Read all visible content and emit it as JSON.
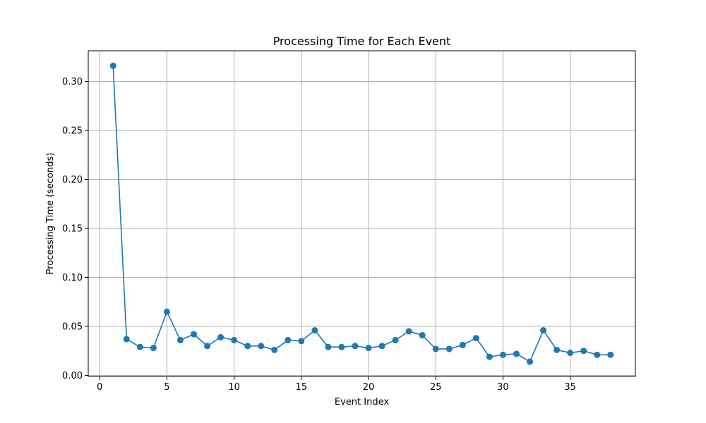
{
  "chart_data": {
    "type": "line",
    "title": "Processing Time for Each Event",
    "xlabel": "Event Index",
    "ylabel": "Processing Time (seconds)",
    "xlim": [
      -0.85,
      39.85
    ],
    "ylim": [
      -0.0011,
      0.3313
    ],
    "xticks": [
      0,
      5,
      10,
      15,
      20,
      25,
      30,
      35
    ],
    "yticks": [
      0.0,
      0.05,
      0.1,
      0.15,
      0.2,
      0.25,
      0.3
    ],
    "ytick_labels": [
      "0.00",
      "0.05",
      "0.10",
      "0.15",
      "0.20",
      "0.25",
      "0.30"
    ],
    "grid": true,
    "marker": "circle",
    "series_color": "#1f77b4",
    "x": [
      1,
      2,
      3,
      4,
      5,
      6,
      7,
      8,
      9,
      10,
      11,
      12,
      13,
      14,
      15,
      16,
      17,
      18,
      19,
      20,
      21,
      22,
      23,
      24,
      25,
      26,
      27,
      28,
      29,
      30,
      31,
      32,
      33,
      34,
      35,
      36,
      37,
      38
    ],
    "series": [
      {
        "values": [
          0.316,
          0.037,
          0.029,
          0.028,
          0.065,
          0.036,
          0.042,
          0.03,
          0.039,
          0.036,
          0.03,
          0.03,
          0.026,
          0.036,
          0.035,
          0.046,
          0.029,
          0.029,
          0.03,
          0.028,
          0.03,
          0.036,
          0.045,
          0.041,
          0.027,
          0.027,
          0.031,
          0.038,
          0.019,
          0.021,
          0.022,
          0.014,
          0.046,
          0.026,
          0.023,
          0.025,
          0.021,
          0.021
        ]
      }
    ]
  }
}
